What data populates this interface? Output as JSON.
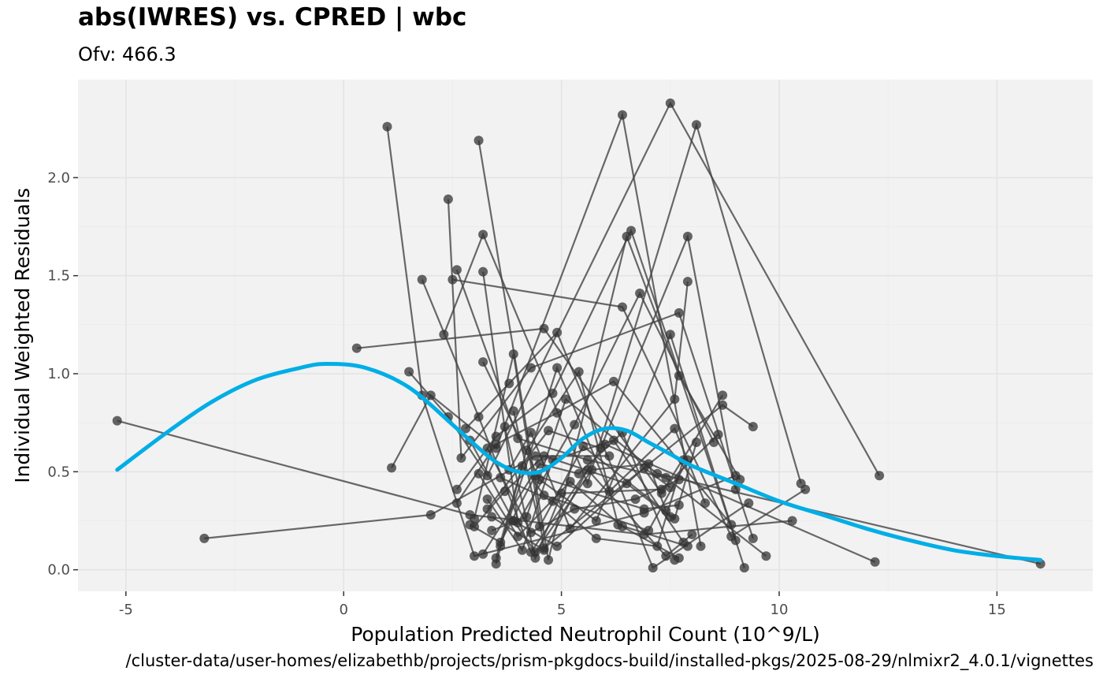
{
  "chart_data": {
    "type": "scatter",
    "title": "abs(IWRES) vs. CPRED | wbc",
    "subtitle": "Ofv: 466.3",
    "xlabel": "Population Predicted Neutrophil Count (10^9/L)",
    "ylabel": "Individual Weighted Residuals",
    "caption": "/cluster-data/user-homes/elizabethb/projects/prism-pkgdocs-build/installed-pkgs/2025-08-29/nlmixr2_4.0.1/vignettes",
    "xlim": [
      -6.1,
      17.2
    ],
    "ylim": [
      -0.11,
      2.5
    ],
    "x_ticks": [
      -5,
      0,
      5,
      10,
      15
    ],
    "x_tick_labels": [
      "-5",
      "0",
      "5",
      "10",
      "15"
    ],
    "y_ticks": [
      0.0,
      0.5,
      1.0,
      1.5,
      2.0
    ],
    "y_tick_labels": [
      "0.0",
      "0.5",
      "1.0",
      "1.5",
      "2.0"
    ],
    "grid": true,
    "legend": "none",
    "colors": {
      "panel_bg": "#f2f2f2",
      "grid_major": "#e3e3e3",
      "grid_minor": "#eaeaea",
      "points": "#333333",
      "lines": "#444444",
      "smooth": "#00aee6"
    },
    "series": [
      {
        "x": [
          -5.2,
          2.9,
          6.9,
          10.3
        ],
        "y": [
          0.76,
          0.28,
          0.18,
          0.25
        ]
      },
      {
        "x": [
          -3.2,
          2.0,
          4.4,
          6.1
        ],
        "y": [
          0.16,
          0.28,
          0.58,
          0.58
        ]
      },
      {
        "x": [
          0.3,
          4.6,
          7.3,
          8.7
        ],
        "y": [
          1.13,
          1.23,
          0.39,
          0.89
        ]
      },
      {
        "x": [
          1.0,
          1.8,
          3.0,
          6.9,
          9.0
        ],
        "y": [
          2.26,
          0.89,
          0.07,
          0.29,
          0.48
        ]
      },
      {
        "x": [
          1.1,
          2.0,
          3.5,
          6.4,
          8.2
        ],
        "y": [
          0.52,
          0.89,
          0.62,
          2.32,
          0.12
        ]
      },
      {
        "x": [
          1.5,
          2.4,
          3.3,
          7.5,
          12.3
        ],
        "y": [
          1.01,
          0.78,
          0.48,
          2.38,
          0.48
        ]
      },
      {
        "x": [
          1.8,
          3.1,
          4.3,
          6.0,
          12.2
        ],
        "y": [
          1.48,
          0.78,
          0.09,
          0.64,
          0.04
        ]
      },
      {
        "x": [
          2.3,
          3.2,
          5.6,
          8.1,
          10.5
        ],
        "y": [
          1.2,
          1.71,
          0.44,
          2.27,
          0.44
        ]
      },
      {
        "x": [
          2.4,
          2.7,
          4.3,
          7.7,
          9.4
        ],
        "y": [
          1.89,
          0.57,
          1.03,
          1.31,
          0.16
        ]
      },
      {
        "x": [
          2.5,
          6.4,
          8.9,
          10.6
        ],
        "y": [
          1.48,
          1.34,
          0.17,
          0.41
        ]
      },
      {
        "x": [
          2.6,
          3.5,
          4.8,
          6.6,
          9.0
        ],
        "y": [
          0.41,
          0.68,
          0.9,
          1.73,
          0.15
        ]
      },
      {
        "x": [
          2.6,
          4.0,
          5.6,
          7.4,
          9.7
        ],
        "y": [
          1.53,
          0.67,
          0.56,
          0.47,
          0.07
        ]
      },
      {
        "x": [
          2.8,
          3.8,
          4.9,
          7.1,
          9.3
        ],
        "y": [
          0.72,
          0.95,
          1.21,
          0.01,
          0.34
        ]
      },
      {
        "x": [
          3.1,
          4.7,
          6.5,
          7.7,
          9.1
        ],
        "y": [
          2.19,
          0.05,
          1.7,
          0.99,
          0.46
        ]
      },
      {
        "x": [
          3.2,
          4.0,
          5.3,
          6.8,
          8.5
        ],
        "y": [
          1.52,
          0.24,
          0.74,
          1.41,
          0.65
        ]
      },
      {
        "x": [
          2.6,
          3.5,
          4.9,
          6.2,
          8.9
        ],
        "y": [
          0.34,
          0.64,
          0.8,
          0.96,
          0.23
        ]
      },
      {
        "x": [
          3.2,
          4.5,
          5.8,
          7.5,
          9.2
        ],
        "y": [
          1.06,
          0.46,
          0.25,
          1.2,
          0.01
        ]
      },
      {
        "x": [
          3.0,
          3.9,
          4.6,
          8.7,
          9.4
        ],
        "y": [
          0.26,
          1.1,
          0.11,
          0.84,
          0.73
        ]
      },
      {
        "x": [
          3.3,
          4.7,
          5.9,
          7.9,
          9.0
        ],
        "y": [
          0.31,
          0.71,
          0.62,
          1.7,
          0.41
        ]
      },
      {
        "x": [
          3.6,
          4.9,
          6.1,
          7.6,
          8.3
        ],
        "y": [
          0.12,
          1.03,
          0.4,
          0.72,
          0.34
        ]
      },
      {
        "x": [
          3.4,
          4.2,
          5.1,
          7.2,
          16.0
        ],
        "y": [
          0.2,
          0.27,
          0.87,
          0.49,
          0.03
        ]
      },
      {
        "x": [
          3.7,
          4.4,
          5.0,
          7.3,
          8.6
        ],
        "y": [
          0.73,
          0.06,
          0.39,
          0.41,
          0.69
        ]
      },
      {
        "x": [
          3.9,
          4.5,
          5.5,
          7.6,
          8.1
        ],
        "y": [
          0.81,
          0.22,
          0.63,
          0.26,
          0.65
        ]
      },
      {
        "x": [
          3.8,
          4.3,
          5.2,
          7.6,
          7.9
        ],
        "y": [
          0.51,
          0.7,
          0.21,
          0.87,
          1.47
        ]
      },
      {
        "x": [
          3.5,
          4.1,
          4.6,
          7.0,
          7.9
        ],
        "y": [
          0.03,
          0.53,
          0.38,
          0.2,
          0.56
        ]
      },
      {
        "x": [
          2.9,
          3.6,
          4.4,
          6.9,
          7.7
        ],
        "y": [
          0.23,
          0.14,
          0.48,
          0.31,
          0.33
        ]
      },
      {
        "x": [
          3.5,
          4.2,
          5.4,
          6.3,
          7.9
        ],
        "y": [
          0.06,
          0.61,
          1.01,
          0.23,
          0.12
        ]
      },
      {
        "x": [
          3.1,
          4.0,
          5.2,
          6.4,
          7.7
        ],
        "y": [
          0.49,
          0.17,
          0.45,
          0.22,
          0.06
        ]
      },
      {
        "x": [
          3.3,
          4.1,
          4.8,
          6.2,
          7.8
        ],
        "y": [
          0.36,
          0.1,
          0.56,
          0.66,
          0.14
        ]
      },
      {
        "x": [
          2.9,
          3.9,
          4.9,
          6.9,
          7.5
        ],
        "y": [
          0.66,
          0.25,
          0.12,
          0.52,
          0.42
        ]
      },
      {
        "x": [
          3.4,
          4.6,
          5.6,
          7.4,
          8.0
        ],
        "y": [
          0.27,
          0.1,
          0.51,
          0.07,
          0.18
        ]
      },
      {
        "x": [
          3.2,
          4.5,
          5.4,
          6.4,
          7.6
        ],
        "y": [
          0.08,
          0.54,
          0.49,
          0.7,
          0.05
        ]
      },
      {
        "x": [
          3.6,
          4.8,
          5.8,
          7.2,
          7.8
        ],
        "y": [
          0.47,
          0.35,
          0.16,
          0.12,
          0.56
        ]
      },
      {
        "x": [
          3.9,
          4.4,
          5.7,
          7.0,
          7.4
        ],
        "y": [
          0.25,
          0.09,
          0.51,
          0.54,
          0.3
        ]
      },
      {
        "x": [
          3.0,
          3.7,
          4.6,
          6.5,
          7.5
        ],
        "y": [
          0.22,
          0.4,
          0.58,
          0.44,
          0.27
        ]
      },
      {
        "x": [
          3.3,
          4.3,
          5.3,
          6.7,
          7.7
        ],
        "y": [
          0.62,
          0.19,
          0.31,
          0.36,
          0.46
        ]
      }
    ],
    "smooth": {
      "x": [
        -5.2,
        -4.0,
        -3.0,
        -2.0,
        -1.0,
        -0.4,
        0.5,
        1.5,
        2.5,
        3.0,
        3.5,
        4.0,
        4.5,
        5.0,
        5.5,
        6.0,
        6.5,
        7.0,
        7.5,
        8.0,
        9.0,
        10.0,
        11.0,
        12.0,
        13.0,
        14.0,
        15.0,
        16.0
      ],
      "y": [
        0.51,
        0.71,
        0.86,
        0.97,
        1.03,
        1.05,
        1.03,
        0.93,
        0.74,
        0.64,
        0.55,
        0.5,
        0.5,
        0.57,
        0.67,
        0.72,
        0.71,
        0.65,
        0.59,
        0.53,
        0.44,
        0.35,
        0.28,
        0.21,
        0.15,
        0.1,
        0.07,
        0.05
      ]
    }
  }
}
